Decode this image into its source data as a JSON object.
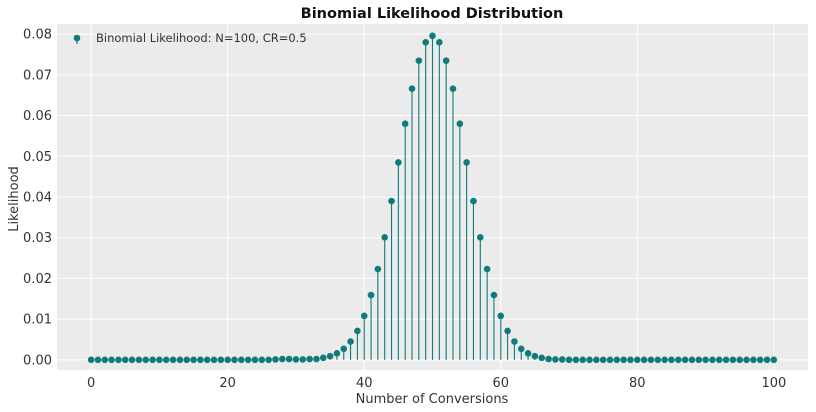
{
  "chart_data": {
    "type": "stem",
    "title": "Binomial Likelihood Distribution",
    "xlabel": "Number of Conversions",
    "ylabel": "Likelihood",
    "xlim": [
      -5,
      105
    ],
    "ylim": [
      -0.0025,
      0.0825
    ],
    "xticks": [
      0,
      20,
      40,
      60,
      80,
      100
    ],
    "xtick_labels": [
      "0",
      "20",
      "40",
      "60",
      "80",
      "100"
    ],
    "yticks": [
      0.0,
      0.01,
      0.02,
      0.03,
      0.04,
      0.05,
      0.06,
      0.07,
      0.08
    ],
    "ytick_labels": [
      "0.00",
      "0.01",
      "0.02",
      "0.03",
      "0.04",
      "0.05",
      "0.06",
      "0.07",
      "0.08"
    ],
    "grid": true,
    "legend": {
      "location": "top-left",
      "entries": [
        "Binomial Likelihood: N=100, CR=0.5"
      ]
    },
    "series": [
      {
        "name": "Binomial Likelihood: N=100, CR=0.5",
        "color": "#0f7b7b",
        "x": [
          0,
          1,
          2,
          3,
          4,
          5,
          6,
          7,
          8,
          9,
          10,
          11,
          12,
          13,
          14,
          15,
          16,
          17,
          18,
          19,
          20,
          21,
          22,
          23,
          24,
          25,
          26,
          27,
          28,
          29,
          30,
          31,
          32,
          33,
          34,
          35,
          36,
          37,
          38,
          39,
          40,
          41,
          42,
          43,
          44,
          45,
          46,
          47,
          48,
          49,
          50,
          51,
          52,
          53,
          54,
          55,
          56,
          57,
          58,
          59,
          60,
          61,
          62,
          63,
          64,
          65,
          66,
          67,
          68,
          69,
          70,
          71,
          72,
          73,
          74,
          75,
          76,
          77,
          78,
          79,
          80,
          81,
          82,
          83,
          84,
          85,
          86,
          87,
          88,
          89,
          90,
          91,
          92,
          93,
          94,
          95,
          96,
          97,
          98,
          99,
          100
        ],
        "values": [
          0,
          0,
          0,
          0,
          0,
          0,
          0,
          0,
          0,
          0,
          0,
          0,
          0,
          0,
          0,
          0,
          0,
          0,
          0,
          0,
          0,
          0,
          0,
          0,
          0,
          0,
          0,
          0.0001,
          0.0002,
          0.0002,
          0.0001,
          0.0001,
          0.0002,
          0.0002,
          0.0005,
          0.0009,
          0.0016,
          0.0027,
          0.0045,
          0.0071,
          0.0108,
          0.0159,
          0.0223,
          0.0301,
          0.039,
          0.0485,
          0.058,
          0.0666,
          0.0735,
          0.078,
          0.0796,
          0.078,
          0.0735,
          0.0666,
          0.058,
          0.0485,
          0.039,
          0.0301,
          0.0223,
          0.0159,
          0.0108,
          0.0071,
          0.0045,
          0.0027,
          0.0016,
          0.0009,
          0.0005,
          0.0002,
          0.0001,
          0.0001,
          0,
          0,
          0,
          0,
          0,
          0,
          0,
          0,
          0,
          0,
          0,
          0,
          0,
          0,
          0,
          0,
          0,
          0,
          0,
          0,
          0,
          0,
          0,
          0,
          0,
          0,
          0,
          0,
          0,
          0,
          0
        ]
      }
    ]
  }
}
